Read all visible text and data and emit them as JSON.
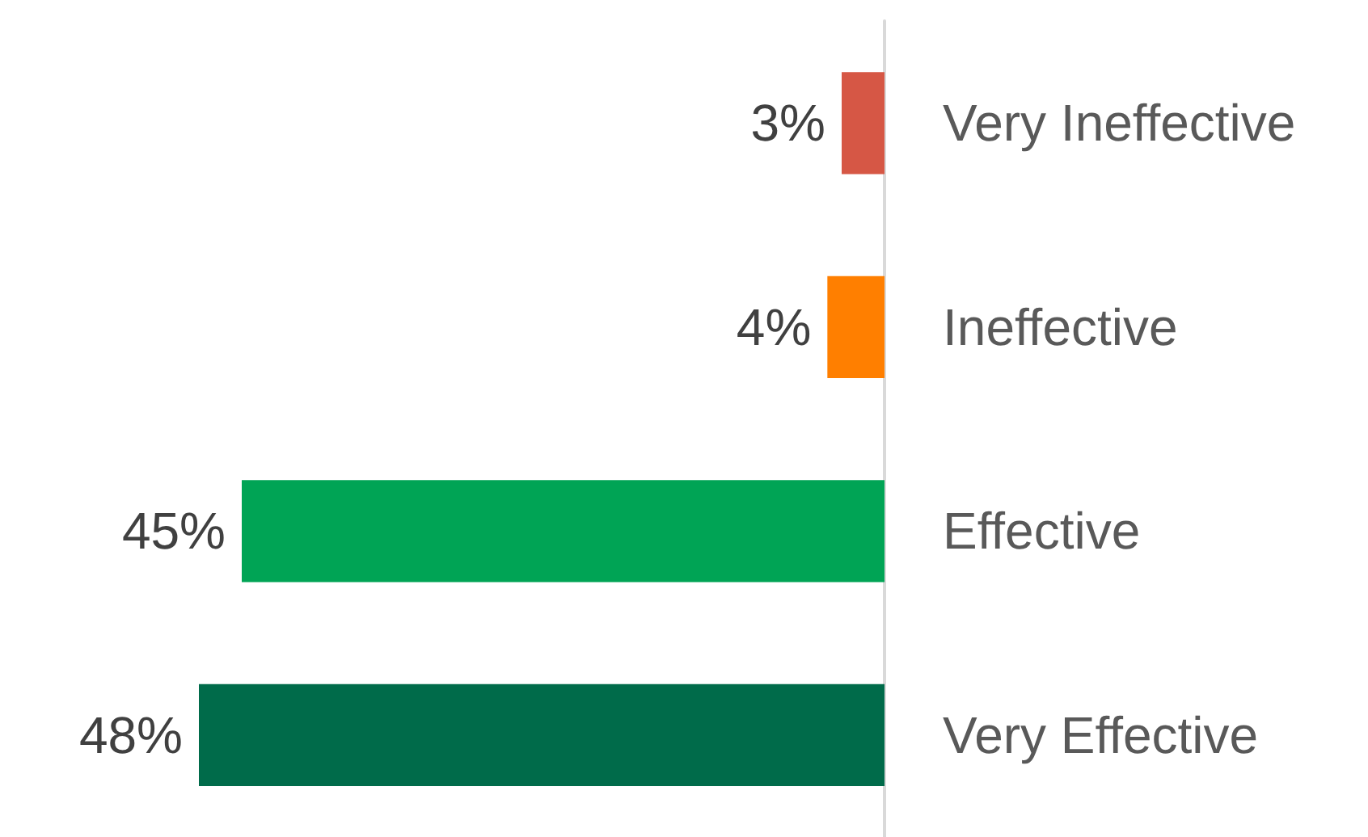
{
  "chart_data": {
    "type": "bar",
    "orientation": "horizontal",
    "categories": [
      "Very Ineffective",
      "Ineffective",
      "Effective",
      "Very Effective"
    ],
    "values": [
      3,
      4,
      45,
      48
    ],
    "colors": [
      "#d65745",
      "#ff7f00",
      "#00a455",
      "#006b4a"
    ],
    "value_labels": [
      "3%",
      "4%",
      "45%",
      "48%"
    ]
  }
}
